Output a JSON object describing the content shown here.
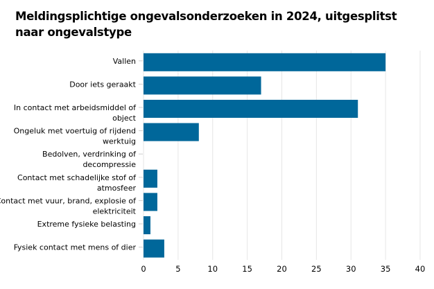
{
  "chart_data": {
    "type": "bar",
    "orientation": "horizontal",
    "title": "Meldingsplichtige ongevalsonderzoeken in 2024, uitgesplitst naar ongevalstype",
    "categories": [
      [
        "Vallen"
      ],
      [
        "Door iets geraakt"
      ],
      [
        "In contact met arbeidsmiddel of",
        "object"
      ],
      [
        "Ongeluk met voertuig of rijdend",
        "werktuig"
      ],
      [
        "Bedolven, verdrinking of",
        "decompressie"
      ],
      [
        "Contact met schadelijke stof of",
        "atmosfeer"
      ],
      [
        "Contact met vuur, brand, explosie of",
        "elektriciteit"
      ],
      [
        "Extreme fysieke belasting"
      ],
      [
        "Fysiek contact met mens of dier"
      ]
    ],
    "values": [
      35,
      17,
      31,
      8,
      0,
      2,
      2,
      1,
      3
    ],
    "xlim": [
      0,
      40
    ],
    "xticks": [
      "0",
      "5",
      "10",
      "15",
      "20",
      "25",
      "30",
      "35",
      "40"
    ],
    "grid": "vertical",
    "bar_color": "#00679a",
    "grid_color": "#e6e6e6"
  }
}
